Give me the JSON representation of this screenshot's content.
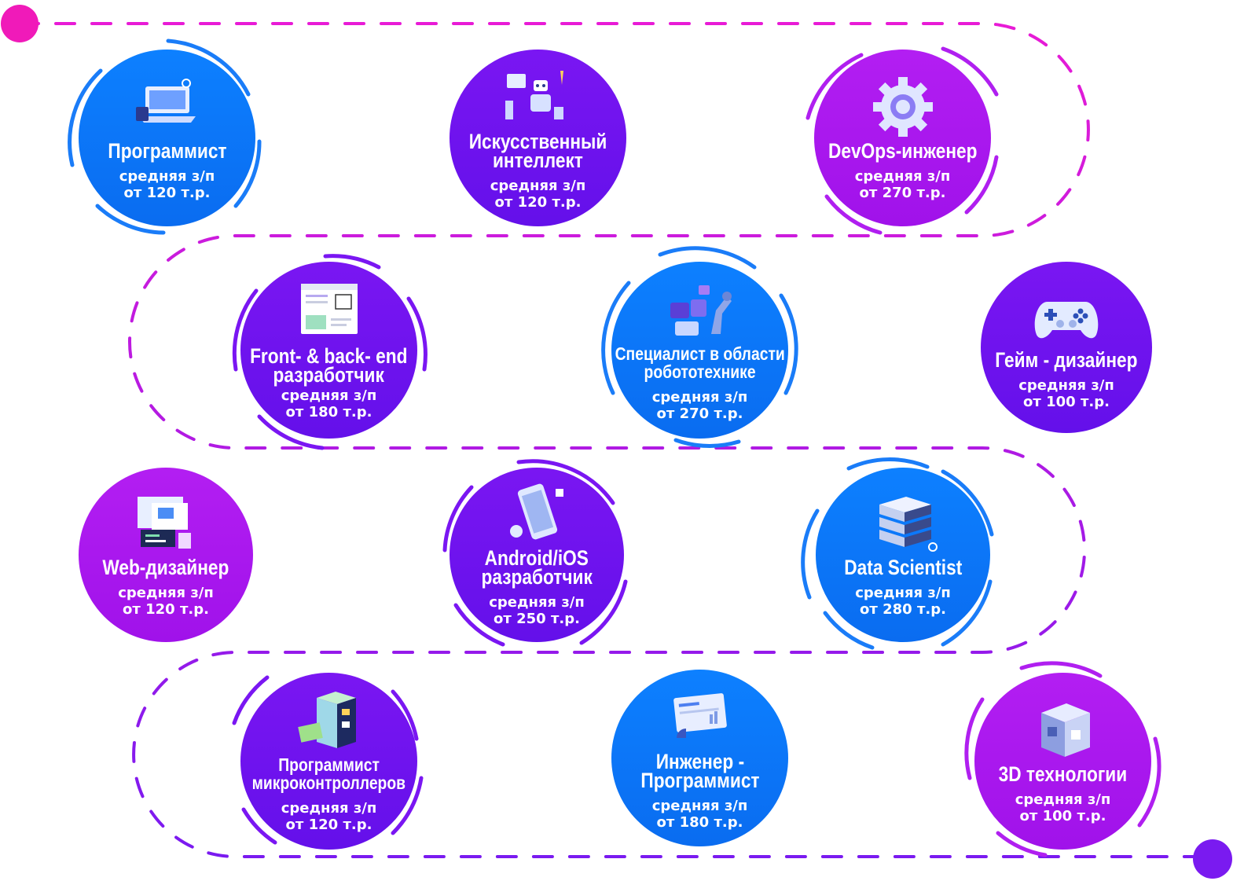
{
  "colors": {
    "blue": "#0a74f7",
    "violet": "#6d12ee",
    "purple": "#a916ee",
    "path_pink": "#e81bd6",
    "path_violet": "#8a22ee",
    "start_dot": "#f01ab9",
    "end_dot": "#7a1af0"
  },
  "nodes": [
    {
      "id": "programmist",
      "title": [
        "Программист"
      ],
      "salary_label": "средняя з/п",
      "salary": "от 120 т.р.",
      "icon": "laptop-icon"
    },
    {
      "id": "ai",
      "title": [
        "Искусственный",
        "интеллект"
      ],
      "salary_label": "средняя з/п",
      "salary": "от 120 т.р.",
      "icon": "robot-icon"
    },
    {
      "id": "devops",
      "title": [
        "DevOps-инженер"
      ],
      "salary_label": "средняя з/п",
      "salary": "от 270 т.р.",
      "icon": "gear-icon"
    },
    {
      "id": "frontback",
      "title": [
        "Front- & back- end",
        "разработчик"
      ],
      "salary_label": "средняя з/п",
      "salary": "от 180 т.р.",
      "icon": "browser-window-icon"
    },
    {
      "id": "robotics",
      "title": [
        "Специалист в области",
        "робототехнике"
      ],
      "salary_label": "средняя з/п",
      "salary": "от 270 т.р.",
      "icon": "robot-arm-icon"
    },
    {
      "id": "gamedesign",
      "title": [
        "Гейм - дизайнер"
      ],
      "salary_label": "средняя з/п",
      "salary": "от 100 т.р.",
      "icon": "gamepad-icon"
    },
    {
      "id": "webdesign",
      "title": [
        "Web-дизайнер"
      ],
      "salary_label": "средняя з/п",
      "salary": "от 120 т.р.",
      "icon": "web-pages-icon"
    },
    {
      "id": "mobile",
      "title": [
        "Android/iOS",
        "разработчик"
      ],
      "salary_label": "средняя з/п",
      "salary": "от 250 т.р.",
      "icon": "smartphone-icon"
    },
    {
      "id": "datascience",
      "title": [
        "Data Scientist"
      ],
      "salary_label": "средняя з/п",
      "salary": "от 280 т.р.",
      "icon": "server-icon"
    },
    {
      "id": "microcontrollers",
      "title": [
        "Программист",
        "микроконтроллеров"
      ],
      "salary_label": "средняя з/п",
      "salary": "от 120 т.р.",
      "icon": "chip-building-icon"
    },
    {
      "id": "engineer",
      "title": [
        "Инженер -",
        "Программист"
      ],
      "salary_label": "средняя з/п",
      "salary": "от 180 т.р.",
      "icon": "dashboard-icon"
    },
    {
      "id": "threed",
      "title": [
        "3D технологии"
      ],
      "salary_label": "средняя з/п",
      "salary": "от 100 т.р.",
      "icon": "cube-icon"
    }
  ]
}
